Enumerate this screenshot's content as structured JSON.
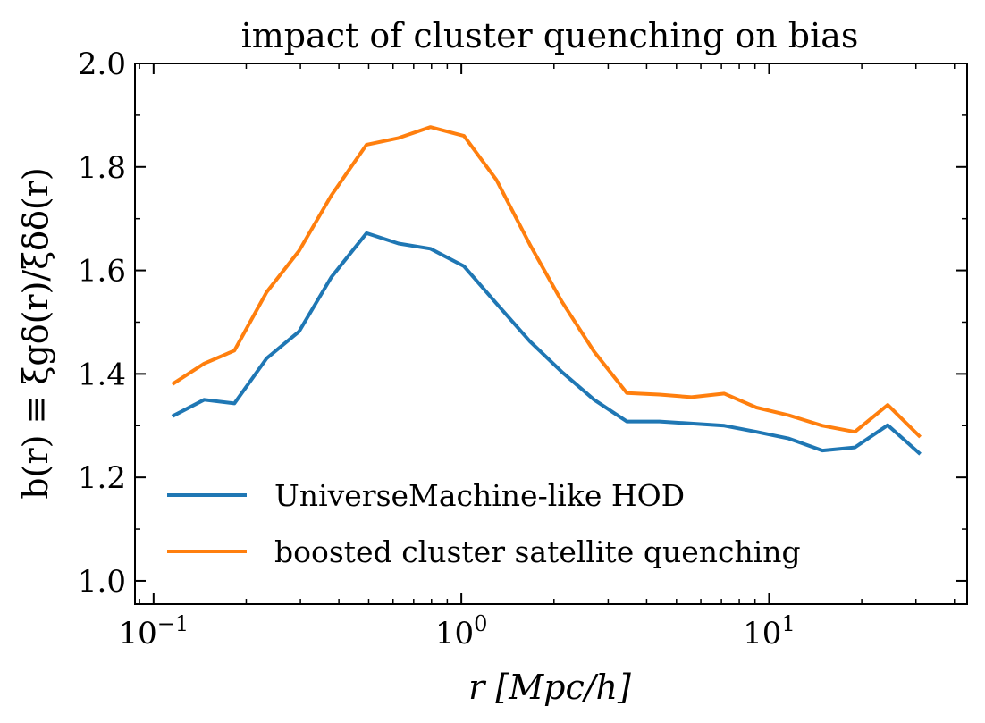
{
  "chart_data": {
    "type": "line",
    "title": "impact of cluster quenching on bias",
    "xlabel": "r [Mpc/h]",
    "ylabel": "b(r) ≡ ξgδ(r)/ξδδ(r)",
    "x_scale": "log",
    "xlim": [
      0.087,
      44
    ],
    "ylim": [
      0.955,
      2.0
    ],
    "x_ticks": [
      {
        "value": 0.1,
        "base": "10",
        "exp": "−1"
      },
      {
        "value": 1,
        "base": "10",
        "exp": "0"
      },
      {
        "value": 10,
        "base": "10",
        "exp": "1"
      }
    ],
    "y_ticks": [
      {
        "value": 1.0,
        "label": "1.0"
      },
      {
        "value": 1.2,
        "label": "1.2"
      },
      {
        "value": 1.4,
        "label": "1.4"
      },
      {
        "value": 1.6,
        "label": "1.6"
      },
      {
        "value": 1.8,
        "label": "1.8"
      },
      {
        "value": 2.0,
        "label": "2.0"
      }
    ],
    "grid": false,
    "legend_position": "lower-left",
    "x": [
      0.115,
      0.146,
      0.183,
      0.233,
      0.297,
      0.378,
      0.492,
      0.625,
      0.794,
      1.02,
      1.3,
      1.67,
      2.12,
      2.7,
      3.45,
      4.4,
      5.6,
      7.15,
      9.1,
      11.6,
      14.9,
      19.0,
      24.3,
      31.0
    ],
    "series": [
      {
        "name": "UniverseMachine-like HOD",
        "color": "#1f77b4",
        "values": [
          1.318,
          1.35,
          1.343,
          1.43,
          1.482,
          1.587,
          1.672,
          1.652,
          1.642,
          1.608,
          1.536,
          1.463,
          1.404,
          1.35,
          1.308,
          1.308,
          1.304,
          1.3,
          1.288,
          1.275,
          1.252,
          1.258,
          1.301,
          1.245
        ]
      },
      {
        "name": "boosted cluster satellite quenching",
        "color": "#ff7f0e",
        "values": [
          1.38,
          1.42,
          1.445,
          1.558,
          1.638,
          1.745,
          1.843,
          1.856,
          1.877,
          1.86,
          1.775,
          1.65,
          1.54,
          1.443,
          1.363,
          1.36,
          1.355,
          1.362,
          1.335,
          1.32,
          1.3,
          1.288,
          1.34,
          1.278
        ]
      }
    ]
  }
}
